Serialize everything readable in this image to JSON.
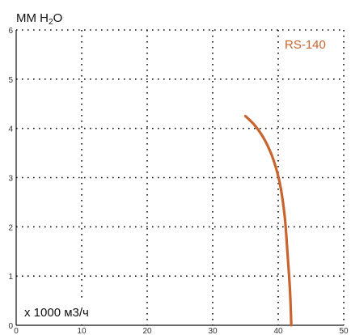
{
  "chart_data": {
    "type": "line",
    "ylabel": {
      "prefix": "MM H",
      "sub": "2",
      "suffix": "O"
    },
    "xlabel": "x 1000 м3/ч",
    "xlim": [
      0,
      50
    ],
    "ylim": [
      0,
      6
    ],
    "x_ticks": [
      0,
      10,
      20,
      30,
      40,
      50
    ],
    "y_ticks": [
      0,
      1,
      2,
      3,
      4,
      5,
      6
    ],
    "grid": true,
    "series": [
      {
        "name": "RS-140",
        "color": "#c8642e",
        "points": [
          {
            "x": 35.0,
            "y": 4.25
          },
          {
            "x": 36.5,
            "y": 4.05
          },
          {
            "x": 38.0,
            "y": 3.75
          },
          {
            "x": 39.3,
            "y": 3.35
          },
          {
            "x": 40.3,
            "y": 2.85
          },
          {
            "x": 41.0,
            "y": 2.2
          },
          {
            "x": 41.4,
            "y": 1.5
          },
          {
            "x": 41.8,
            "y": 0.7
          },
          {
            "x": 42.0,
            "y": 0.0
          }
        ]
      }
    ]
  }
}
